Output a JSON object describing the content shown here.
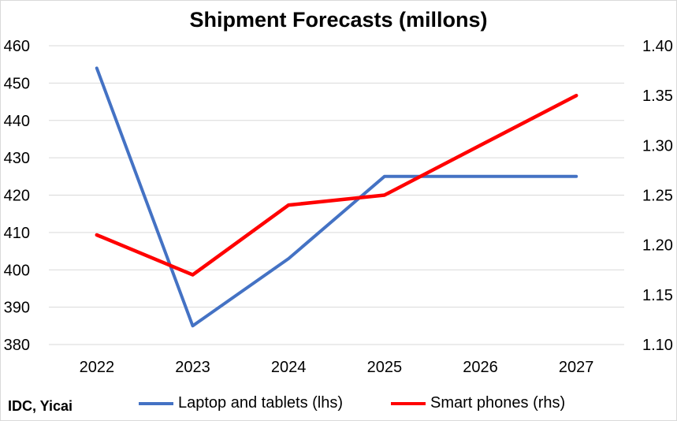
{
  "chart_data": {
    "type": "line",
    "title": "Shipment Forecasts (millons)",
    "categories": [
      "2022",
      "2023",
      "2024",
      "2025",
      "2026",
      "2027"
    ],
    "y_left": {
      "min": 380,
      "max": 460,
      "step": 10,
      "ticks": [
        "380",
        "390",
        "400",
        "410",
        "420",
        "430",
        "440",
        "450",
        "460"
      ]
    },
    "y_right": {
      "min": 1.1,
      "max": 1.4,
      "step": 0.05,
      "ticks": [
        "1.10",
        "1.15",
        "1.20",
        "1.25",
        "1.30",
        "1.35",
        "1.40"
      ]
    },
    "grid": true,
    "legend_position": "bottom",
    "series": [
      {
        "name": "Laptop and tablets (lhs)",
        "axis": "left",
        "color": "#4472c4",
        "values": [
          454,
          385,
          403,
          425,
          425,
          425
        ]
      },
      {
        "name": "Smart phones (rhs)",
        "axis": "right",
        "color": "#ff0000",
        "values": [
          1.21,
          1.17,
          1.24,
          1.25,
          1.3,
          1.35
        ]
      }
    ],
    "source": "IDC, Yicai"
  }
}
